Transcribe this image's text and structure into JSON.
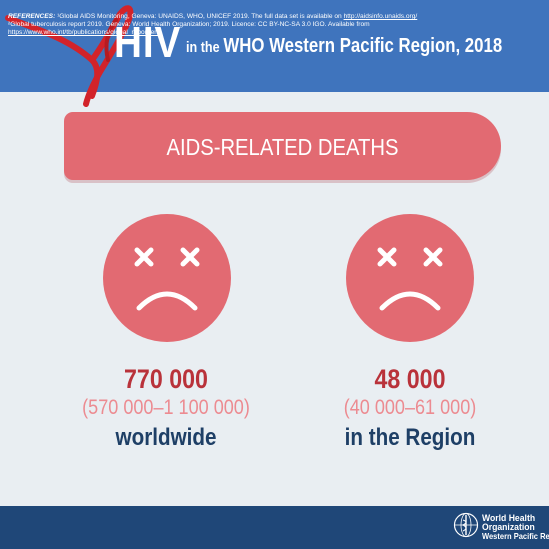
{
  "header": {
    "hiv": "HIV",
    "in_the": "in the",
    "region_year": "WHO Western Pacific Region, 2018"
  },
  "banner": {
    "text": "AIDS-RELATED DEATHS"
  },
  "stats": [
    {
      "number": "770 000",
      "range": "(570 000–1 100 000)",
      "label": "worldwide"
    },
    {
      "number": "48 000",
      "range": "(40 000–61 000)",
      "label": "in the Region"
    }
  ],
  "footer": {
    "references_heading": "REFERENCES:",
    "ref1": " ¹Global AIDS Monitoring, Geneva: UNAIDS, WHO, UNICEF 2019.  The full data set is available on ",
    "ref1_link": "http://aidsinfo.unaids.org/",
    "ref2": "²Global tuberculosis report 2019. Geneva: World Health Organization; 2019. Licence: CC BY-NC-SA 3.0 IGO.  Available from",
    "ref2_link": "https://www.who.int/tb/publications/global_report/en/",
    "ref2_end": ".",
    "who_line1": "World Health",
    "who_line2": "Organization",
    "who_line3": "Western Pacific Region"
  },
  "colors": {
    "header_blue": "#3f74bd",
    "ribbon_red": "#d2232a",
    "banner_red": "#e26a72",
    "number_red": "#b9323a",
    "range_pink": "#ec8b91",
    "label_navy": "#1e3f66",
    "footer_navy": "#1f4778"
  },
  "icons": [
    "red-ribbon-icon",
    "sad-face-icon",
    "who-emblem-icon"
  ]
}
